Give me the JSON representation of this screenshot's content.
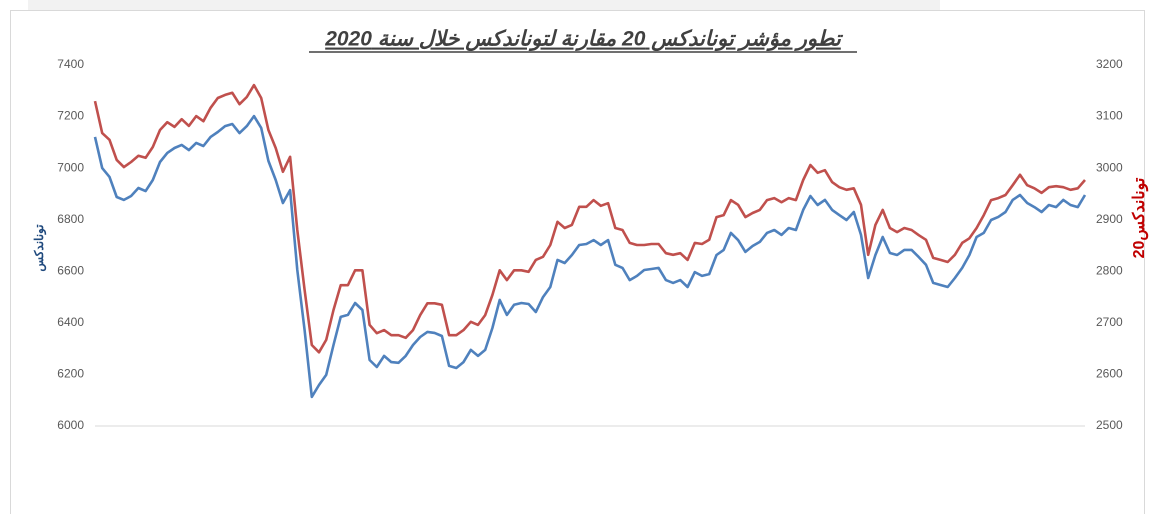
{
  "chart_data": {
    "type": "line",
    "title": "تطور مؤشر توناندكس 20 مقارنة لتوناندكس  خلال سنة 2020",
    "y_label": "توناندكس",
    "y2_label": "توناندكس20",
    "ylim": [
      6000,
      7400
    ],
    "yticks": [
      6000,
      6200,
      6400,
      6600,
      6800,
      7000,
      7200,
      7400
    ],
    "y2lim": [
      2500,
      3200
    ],
    "y2ticks": [
      2500,
      2600,
      2700,
      2800,
      2900,
      3000,
      3100,
      3200
    ],
    "grid": false,
    "series": [
      {
        "name": "توناندكس",
        "color": "#4f81bd",
        "axis": "y",
        "values": [
          7121,
          7000,
          6966,
          6888,
          6877,
          6892,
          6923,
          6911,
          6954,
          7024,
          7059,
          7078,
          7090,
          7070,
          7098,
          7086,
          7121,
          7140,
          7163,
          7171,
          7136,
          7163,
          7202,
          7156,
          7028,
          6954,
          6865,
          6915,
          6605,
          6372,
          6113,
          6159,
          6198,
          6314,
          6423,
          6431,
          6477,
          6450,
          6256,
          6229,
          6272,
          6248,
          6245,
          6272,
          6314,
          6345,
          6365,
          6361,
          6349,
          6233,
          6225,
          6248,
          6295,
          6272,
          6295,
          6380,
          6489,
          6431,
          6470,
          6477,
          6473,
          6442,
          6500,
          6539,
          6644,
          6632,
          6663,
          6702,
          6706,
          6721,
          6702,
          6721,
          6625,
          6613,
          6566,
          6582,
          6605,
          6609,
          6613,
          6566,
          6555,
          6566,
          6539,
          6597,
          6582,
          6589,
          6663,
          6683,
          6749,
          6721,
          6675,
          6698,
          6714,
          6749,
          6760,
          6741,
          6768,
          6760,
          6838,
          6892,
          6857,
          6877,
          6838,
          6818,
          6799,
          6830,
          6741,
          6574,
          6663,
          6733,
          6671,
          6663,
          6683,
          6683,
          6655,
          6625,
          6555,
          6547,
          6539,
          6574,
          6613,
          6663,
          6733,
          6749,
          6799,
          6811,
          6830,
          6877,
          6896,
          6865,
          6849,
          6830,
          6857,
          6849,
          6877,
          6857,
          6849,
          6896
        ]
      },
      {
        "name": "توناندكس20",
        "color": "#c0504d",
        "axis": "y2",
        "values": [
          3130,
          3068,
          3055,
          3016,
          3002,
          3012,
          3024,
          3020,
          3041,
          3074,
          3089,
          3080,
          3095,
          3082,
          3101,
          3091,
          3117,
          3136,
          3142,
          3146,
          3124,
          3138,
          3161,
          3136,
          3074,
          3039,
          2993,
          3022,
          2880,
          2764,
          2657,
          2643,
          2667,
          2725,
          2773,
          2773,
          2802,
          2802,
          2696,
          2680,
          2686,
          2676,
          2676,
          2671,
          2686,
          2715,
          2738,
          2738,
          2735,
          2676,
          2676,
          2686,
          2702,
          2696,
          2715,
          2754,
          2802,
          2783,
          2802,
          2802,
          2799,
          2822,
          2828,
          2851,
          2896,
          2884,
          2890,
          2925,
          2925,
          2938,
          2927,
          2932,
          2884,
          2880,
          2855,
          2851,
          2851,
          2853,
          2853,
          2835,
          2832,
          2835,
          2822,
          2855,
          2853,
          2861,
          2905,
          2909,
          2938,
          2929,
          2905,
          2913,
          2919,
          2938,
          2942,
          2934,
          2942,
          2938,
          2977,
          3006,
          2991,
          2996,
          2973,
          2963,
          2958,
          2961,
          2929,
          2832,
          2890,
          2919,
          2884,
          2876,
          2884,
          2880,
          2870,
          2861,
          2826,
          2822,
          2818,
          2832,
          2855,
          2864,
          2884,
          2909,
          2938,
          2942,
          2948,
          2967,
          2987,
          2967,
          2961,
          2952,
          2963,
          2965,
          2963,
          2958,
          2961,
          2977
        ]
      }
    ]
  }
}
